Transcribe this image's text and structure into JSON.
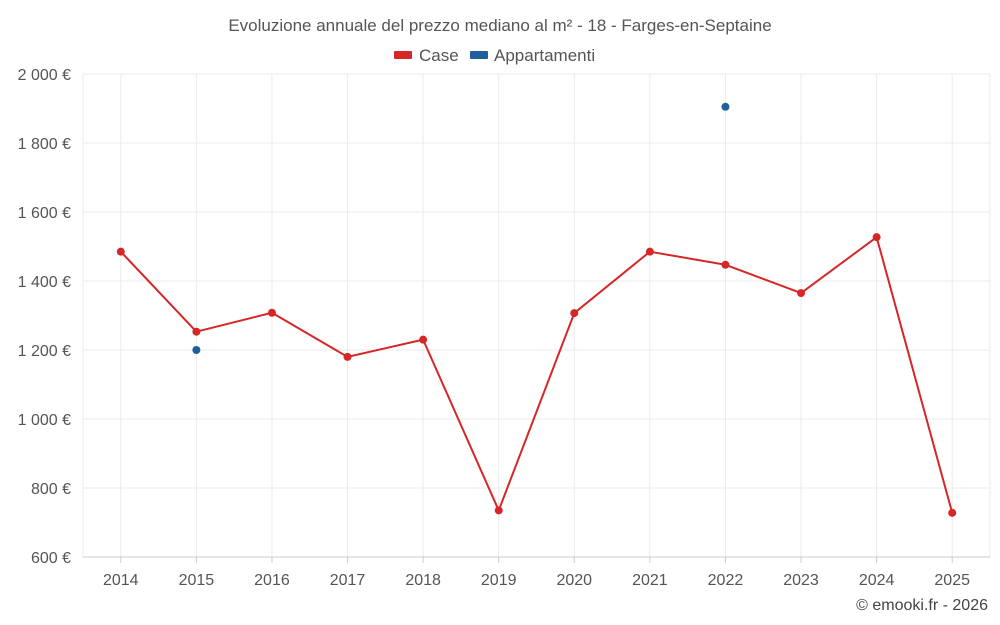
{
  "chart_data": {
    "type": "line",
    "title": "Evoluzione annuale del prezzo mediano al m² - 18 - Farges-en-Septaine",
    "xlabel": "",
    "ylabel": "",
    "categories": [
      "2014",
      "2015",
      "2016",
      "2017",
      "2018",
      "2019",
      "2020",
      "2021",
      "2022",
      "2023",
      "2024",
      "2025"
    ],
    "ylim": [
      600,
      2000
    ],
    "yticks": [
      600,
      800,
      1000,
      1200,
      1400,
      1600,
      1800,
      2000
    ],
    "ytick_labels": [
      "600 €",
      "800 €",
      "1 000 €",
      "1 200 €",
      "1 400 €",
      "1 600 €",
      "1 800 €",
      "2 000 €"
    ],
    "grid": true,
    "legend_position": "top-center",
    "series": [
      {
        "name": "Case",
        "color": "#d62728",
        "values": [
          1485,
          1253,
          1308,
          1180,
          1230,
          735,
          1307,
          1485,
          1447,
          1365,
          1527,
          728
        ]
      },
      {
        "name": "Appartamenti",
        "color": "#1f5f9e",
        "values": [
          null,
          1200,
          null,
          null,
          null,
          null,
          null,
          null,
          1905,
          null,
          null,
          null
        ]
      }
    ]
  },
  "footer": "© emooki.fr - 2026"
}
